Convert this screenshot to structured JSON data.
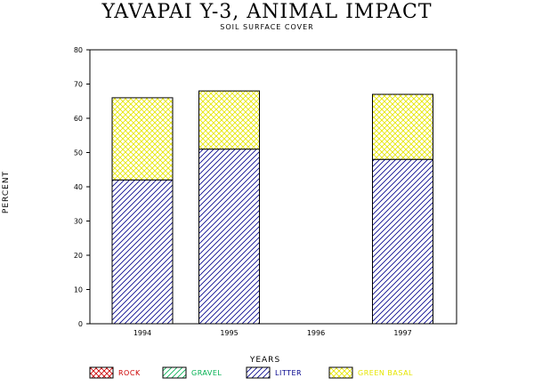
{
  "chart_data": {
    "type": "bar",
    "stacked": true,
    "title": "YAVAPAI Y-3, ANIMAL IMPACT",
    "subtitle": "SOIL SURFACE COVER",
    "xlabel": "YEARS",
    "ylabel": "PERCENT",
    "ylim": [
      0,
      80
    ],
    "yticks": [
      0,
      10,
      20,
      30,
      40,
      50,
      60,
      70,
      80
    ],
    "categories": [
      "1994",
      "1995",
      "1996",
      "1997"
    ],
    "series": [
      {
        "name": "ROCK",
        "values": [
          0,
          0,
          0,
          0
        ],
        "color": "#cc0000",
        "pattern": "crosshatch"
      },
      {
        "name": "GRAVEL",
        "values": [
          0,
          0,
          0,
          0
        ],
        "color": "#00b050",
        "pattern": "diagonal"
      },
      {
        "name": "LITTER",
        "values": [
          42,
          51,
          0,
          48
        ],
        "color": "#00008b",
        "pattern": "diagonal"
      },
      {
        "name": "GREEN BASAL",
        "values": [
          24,
          17,
          0,
          19
        ],
        "color": "#e6e600",
        "pattern": "crosshatch"
      }
    ],
    "grid": false,
    "legend_position": "bottom"
  }
}
